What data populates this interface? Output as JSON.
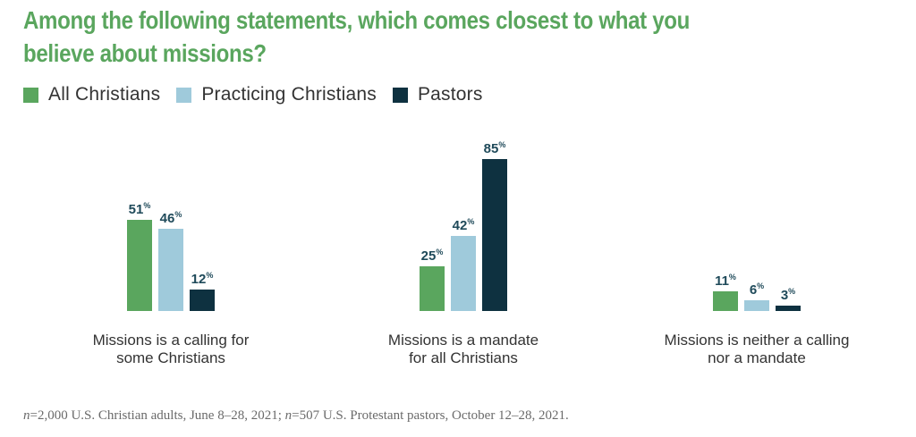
{
  "colors": {
    "title": "#5aa65e",
    "all_christians": "#5aa65e",
    "practicing_christians": "#9fcadb",
    "pastors": "#0e3140",
    "data_label": "#1f4a5a",
    "category_text": "#333333"
  },
  "chart_data": {
    "type": "bar",
    "title": "Among the following statements, which comes closest to what you believe about missions?",
    "categories": [
      [
        "Missions is a calling for",
        "some Christians"
      ],
      [
        "Missions is a mandate",
        "for all Christians"
      ],
      [
        "Missions is neither a calling",
        "nor a mandate"
      ]
    ],
    "series": [
      {
        "name": "All Christians",
        "color": "#5aa65e",
        "values": [
          51,
          25,
          11
        ]
      },
      {
        "name": "Practicing Christians",
        "color": "#9fcadb",
        "values": [
          46,
          42,
          6
        ]
      },
      {
        "name": "Pastors",
        "color": "#0e3140",
        "values": [
          12,
          85,
          3
        ]
      }
    ],
    "value_suffix": "%",
    "ylim": [
      0,
      100
    ],
    "legend_position": "top-left",
    "grid": false
  },
  "footnote": {
    "n1": "n",
    "text1": "=2,000 U.S. Christian adults, June 8–28, 2021; ",
    "n2": "n",
    "text2": "=507 U.S. Protestant pastors, October 12–28, 2021."
  }
}
